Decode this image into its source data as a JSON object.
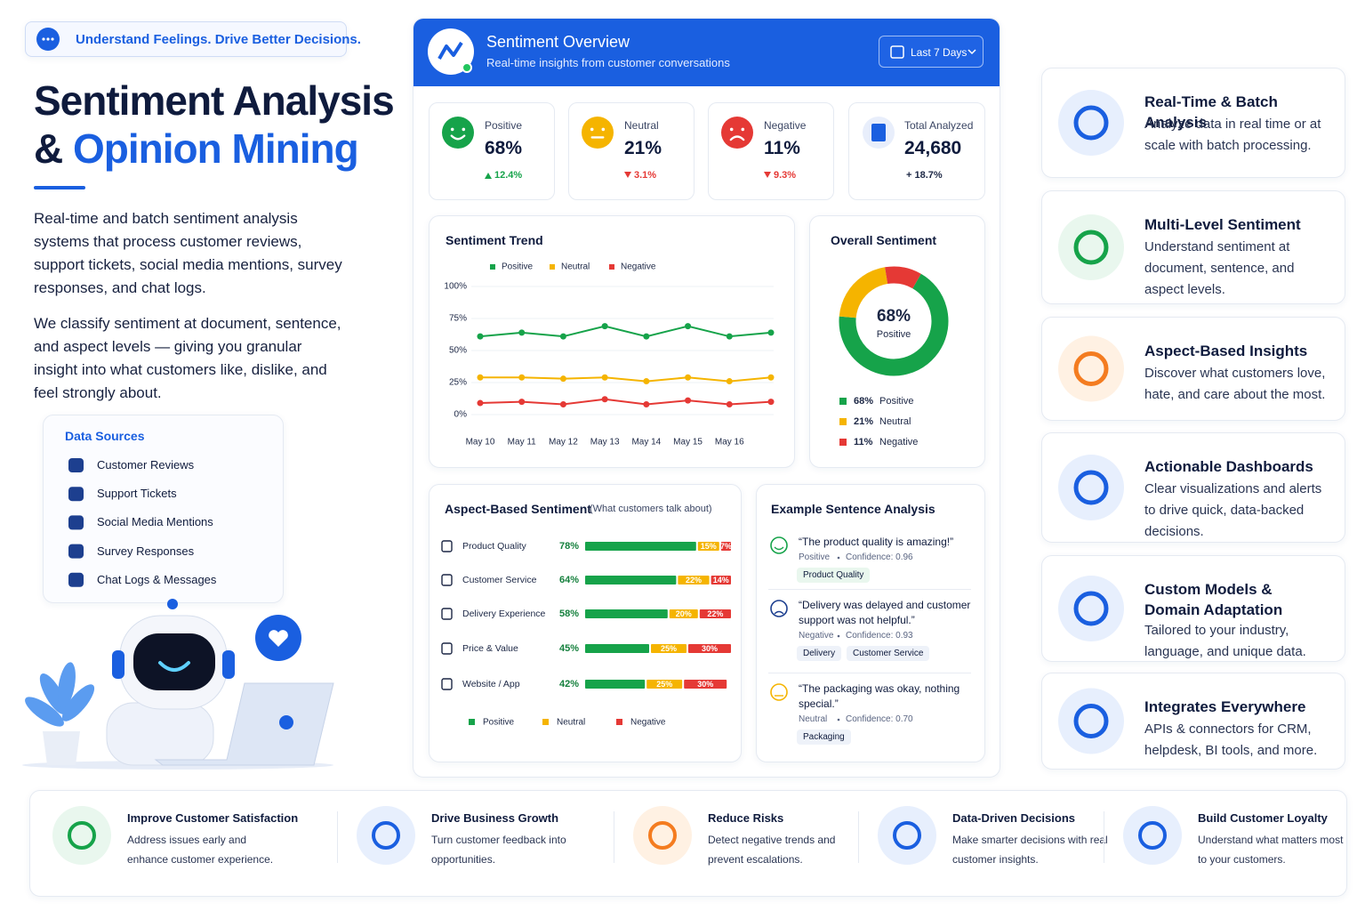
{
  "header": {
    "tagline": "Understand Feelings. Drive Better Decisions.",
    "title_line1": "Sentiment Analysis",
    "title_amp": "&",
    "title_highlight": "Opinion Mining"
  },
  "intro": [
    "Real-time and batch sentiment analysis systems that process customer reviews, support tickets, social media mentions, survey responses, and chat logs.",
    "We classify sentiment at document, sentence, and aspect levels — giving you granular insight into what customers like, dislike, and feel strongly about."
  ],
  "data_sources": {
    "title": "Data Sources",
    "items": [
      "Customer Reviews",
      "Support Tickets",
      "Social Media Mentions",
      "Survey Responses",
      "Chat Logs & Messages"
    ]
  },
  "dashboard": {
    "title": "Sentiment Overview",
    "subtitle": "Real-time insights from customer conversations",
    "range": "Last 7 Days",
    "kpis": [
      {
        "label": "Positive",
        "value": "68%",
        "change": "12.4%",
        "trend": "up"
      },
      {
        "label": "Neutral",
        "value": "21%",
        "change": "3.1%",
        "trend": "down"
      },
      {
        "label": "Negative",
        "value": "11%",
        "change": "9.3%",
        "trend": "down"
      },
      {
        "label": "Total Analyzed",
        "value": "24,680",
        "change": "+ 18.7%"
      }
    ],
    "trend": {
      "type": "line",
      "title": "Sentiment Trend",
      "categories": [
        "May 10",
        "May 11",
        "May 12",
        "May 13",
        "May 14",
        "May 15",
        "May 16",
        null
      ],
      "series": [
        {
          "name": "Positive",
          "color": "#16a34a",
          "values": [
            61,
            64,
            61,
            69,
            61,
            69,
            61,
            64
          ]
        },
        {
          "name": "Neutral",
          "color": "#f5b400",
          "values": [
            29,
            29,
            28,
            29,
            26,
            29,
            26,
            29
          ]
        },
        {
          "name": "Negative",
          "color": "#e53935",
          "values": [
            9,
            10,
            8,
            12,
            8,
            11,
            8,
            10
          ]
        }
      ],
      "ylim": [
        0,
        100
      ],
      "yticks": [
        {
          "value": 0,
          "label": "0%"
        },
        {
          "value": 25,
          "label": "25%"
        },
        {
          "value": 50,
          "label": "50%"
        },
        {
          "value": 75,
          "label": "75%"
        },
        {
          "value": 100,
          "label": "100%"
        }
      ],
      "grid": true
    },
    "donut": {
      "type": "pie",
      "title": "Overall Sentiment",
      "center_value": "68%",
      "center_label": "Positive",
      "categories": [
        "Positive",
        "Neutral",
        "Negative"
      ],
      "values": [
        68,
        21,
        11
      ],
      "value_labels": [
        "68%",
        "21%",
        "11%"
      ],
      "colors": [
        "#16a34a",
        "#f5b400",
        "#e53935"
      ]
    },
    "aspects": {
      "type": "bar",
      "title": "Aspect-Based Sentiment",
      "subtitle": "(What customers talk about)",
      "categories": [
        "Product Quality",
        "Customer Service",
        "Delivery Experience",
        "Price & Value",
        "Website / App"
      ],
      "series": [
        {
          "name": "Positive",
          "color": "#16a34a",
          "values": [
            78,
            64,
            58,
            45,
            42
          ],
          "value_labels": [
            "78%",
            "64%",
            "58%",
            "45%",
            "42%"
          ]
        },
        {
          "name": "Neutral",
          "color": "#f5b400",
          "values": [
            15,
            22,
            20,
            25,
            25
          ],
          "value_labels": [
            "15%",
            "22%",
            "20%",
            "25%",
            "25%"
          ]
        },
        {
          "name": "Negative",
          "color": "#e53935",
          "values": [
            7,
            14,
            22,
            30,
            30
          ],
          "value_labels": [
            "7%",
            "14%",
            "22%",
            "30%",
            "30%"
          ]
        }
      ]
    },
    "examples": {
      "title": "Example Sentence Analysis",
      "items": [
        {
          "text": "“The product quality is amazing!”",
          "sentiment": "Positive",
          "confidence": "Confidence: 0.96",
          "tags": [
            "Product Quality"
          ]
        },
        {
          "text": "“Delivery was delayed and customer support was not helpful.”",
          "sentiment": "Negative",
          "confidence": "Confidence: 0.93",
          "tags": [
            "Delivery",
            "Customer Service"
          ]
        },
        {
          "text": "“The packaging was okay, nothing special.”",
          "sentiment": "Neutral",
          "confidence": "Confidence: 0.70",
          "tags": [
            "Packaging"
          ]
        }
      ]
    }
  },
  "features": [
    {
      "title": "Real-Time & Batch Analysis",
      "text": "Analyze data in real time or at scale with batch processing."
    },
    {
      "title": "Multi-Level Sentiment",
      "text": "Understand sentiment at document, sentence, and aspect levels."
    },
    {
      "title": "Aspect-Based Insights",
      "text": "Discover what customers love, hate, and care about the most."
    },
    {
      "title": "Actionable Dashboards",
      "text": "Clear visualizations and alerts to drive quick, data-backed decisions."
    },
    {
      "title": "Custom Models & Domain Adaptation",
      "text": "Tailored to your industry, language, and unique data."
    },
    {
      "title": "Integrates Everywhere",
      "text": "APIs & connectors for CRM, helpdesk, BI tools, and more."
    }
  ],
  "benefits": [
    {
      "title": "Improve Customer Satisfaction",
      "text": "Address issues early and enhance customer experience."
    },
    {
      "title": "Drive Business Growth",
      "text": "Turn customer feedback into opportunities."
    },
    {
      "title": "Reduce Risks",
      "text": "Detect negative trends and prevent escalations."
    },
    {
      "title": "Data-Driven Decisions",
      "text": "Make smarter decisions with real customer insights."
    },
    {
      "title": "Build Customer Loyalty",
      "text": "Understand what matters most to your customers."
    }
  ]
}
